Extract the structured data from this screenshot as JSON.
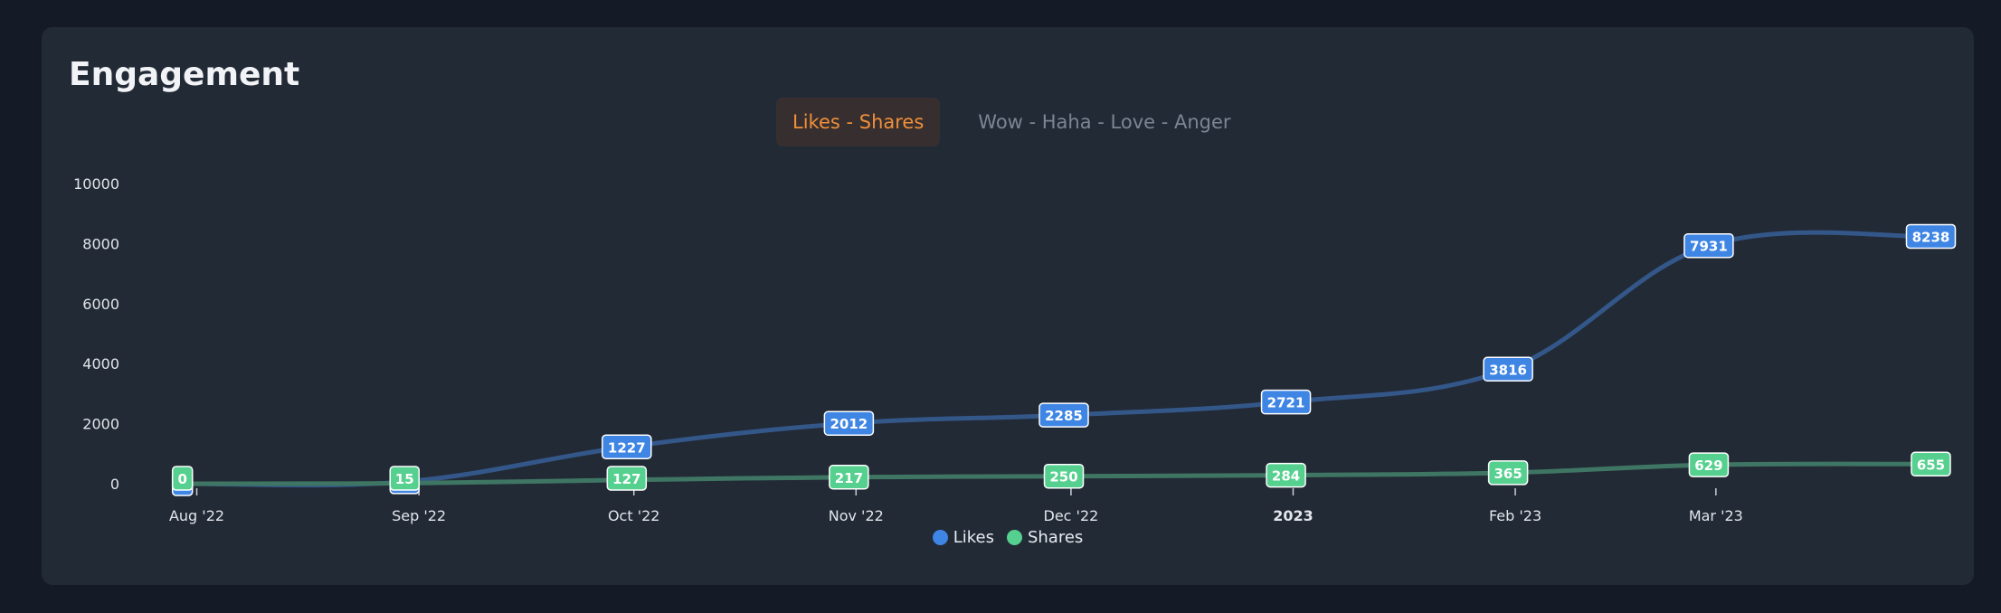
{
  "card": {
    "title": "Engagement",
    "tabs": [
      {
        "label": "Likes - Shares",
        "active": true
      },
      {
        "label": "Wow - Haha - Love - Anger",
        "active": false
      }
    ]
  },
  "colors": {
    "likes": "#3f86e4",
    "shares": "#56d08f",
    "active_tab": "#ef8f3a"
  },
  "chart_data": {
    "type": "line",
    "title": "Engagement",
    "ylim": [
      0,
      10000
    ],
    "y_ticks": [
      "0",
      "2000",
      "4000",
      "6000",
      "8000",
      "10000"
    ],
    "x_ticks": [
      {
        "label": "Aug '22",
        "date": "2022-08-01",
        "bold": false
      },
      {
        "label": "Sep '22",
        "date": "2022-09-01",
        "bold": false
      },
      {
        "label": "Oct '22",
        "date": "2022-10-01",
        "bold": false
      },
      {
        "label": "Nov '22",
        "date": "2022-11-01",
        "bold": false
      },
      {
        "label": "Dec '22",
        "date": "2022-12-01",
        "bold": false
      },
      {
        "label": "2023",
        "date": "2023-01-01",
        "bold": true
      },
      {
        "label": "Feb '23",
        "date": "2023-02-01",
        "bold": false
      },
      {
        "label": "Mar '23",
        "date": "2023-03-01",
        "bold": false
      }
    ],
    "x": [
      "2022-07-30",
      "2022-08-30",
      "2022-09-30",
      "2022-10-31",
      "2022-11-30",
      "2022-12-31",
      "2023-01-31",
      "2023-02-28",
      "2023-03-31"
    ],
    "series": [
      {
        "name": "Likes",
        "values": [
          0,
          65,
          1227,
          2012,
          2285,
          2721,
          3816,
          7931,
          8238
        ]
      },
      {
        "name": "Shares",
        "values": [
          0,
          15,
          127,
          217,
          250,
          284,
          365,
          629,
          655
        ]
      }
    ],
    "legend": "bottom-center",
    "grid": false
  }
}
